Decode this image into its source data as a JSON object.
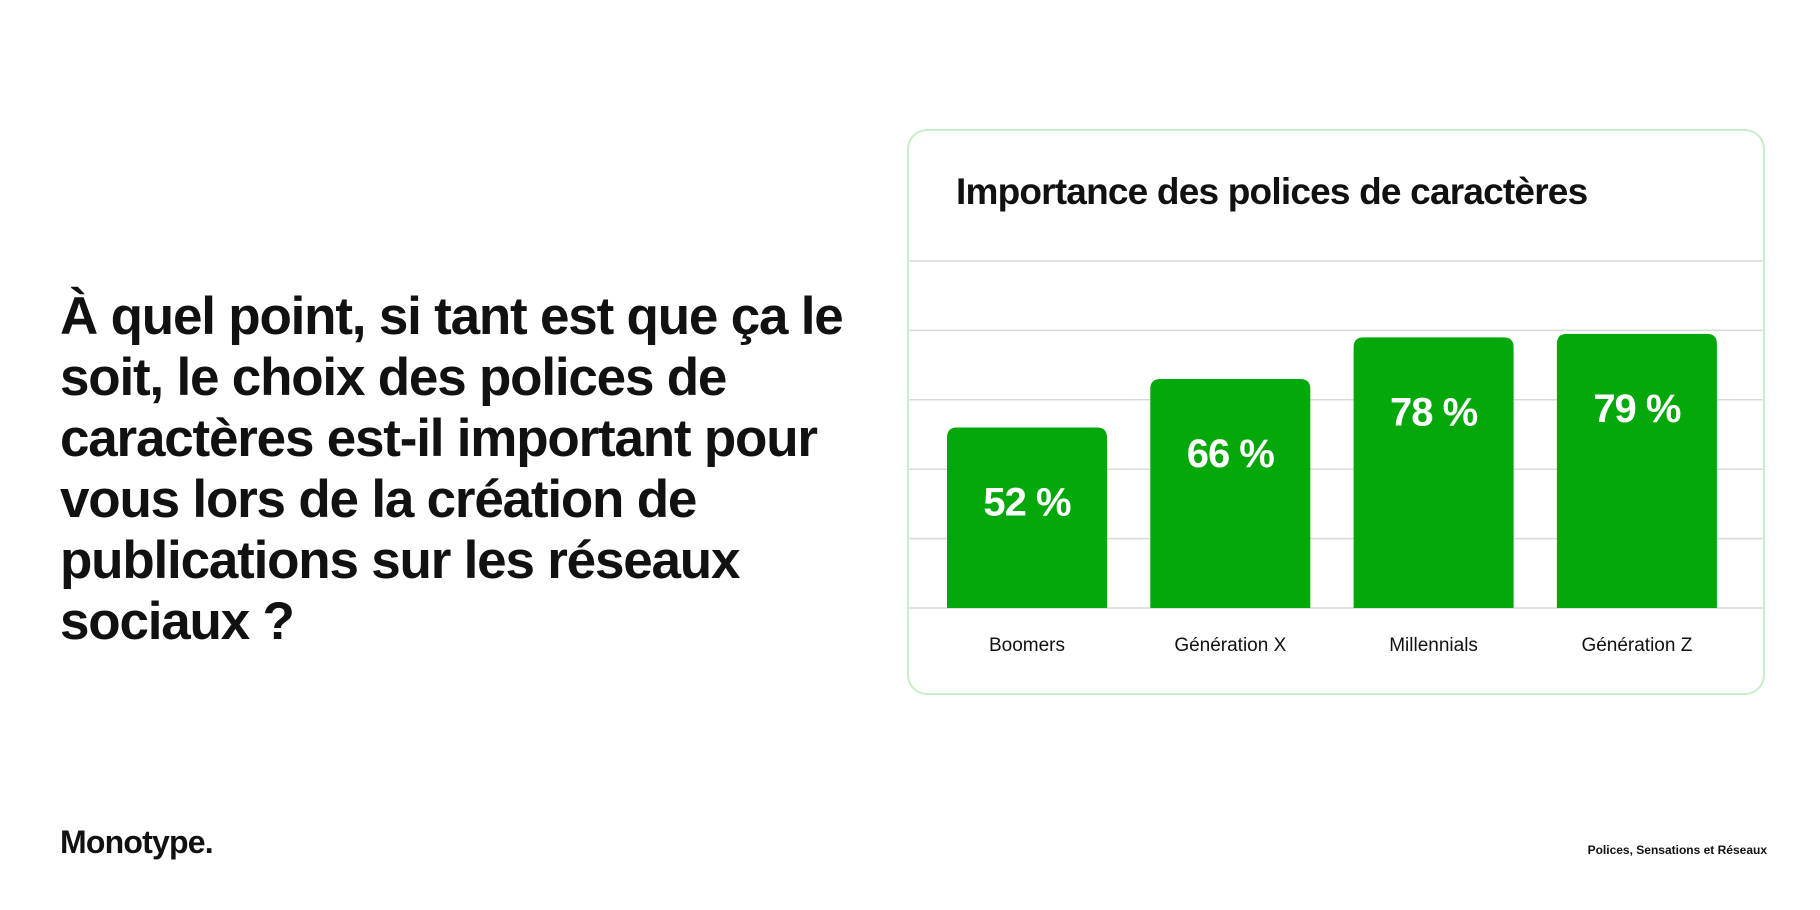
{
  "question": "À quel point, si tant est que ça le soit, le choix des polices de caractères est-il important pour vous lors de la création de publications sur les réseaux sociaux ?",
  "brand": "Monotype.",
  "footer": "Polices, Sensations et Réseaux",
  "colors": {
    "bar": "#04a80a",
    "bar_label": "#ffffff",
    "grid": "#d9d9d9",
    "card_border": "#c9ecc9",
    "text": "#111111"
  },
  "chart_data": {
    "type": "bar",
    "title": "Importance des polices de caractères",
    "categories": [
      "Boomers",
      "Génération X",
      "Millennials",
      "Génération Z"
    ],
    "values": [
      52,
      66,
      78,
      79
    ],
    "data_labels": [
      "52 %",
      "66 %",
      "78 %",
      "79 %"
    ],
    "unit": "%",
    "ylim": [
      0,
      100
    ],
    "grid": true,
    "legend": "none"
  }
}
